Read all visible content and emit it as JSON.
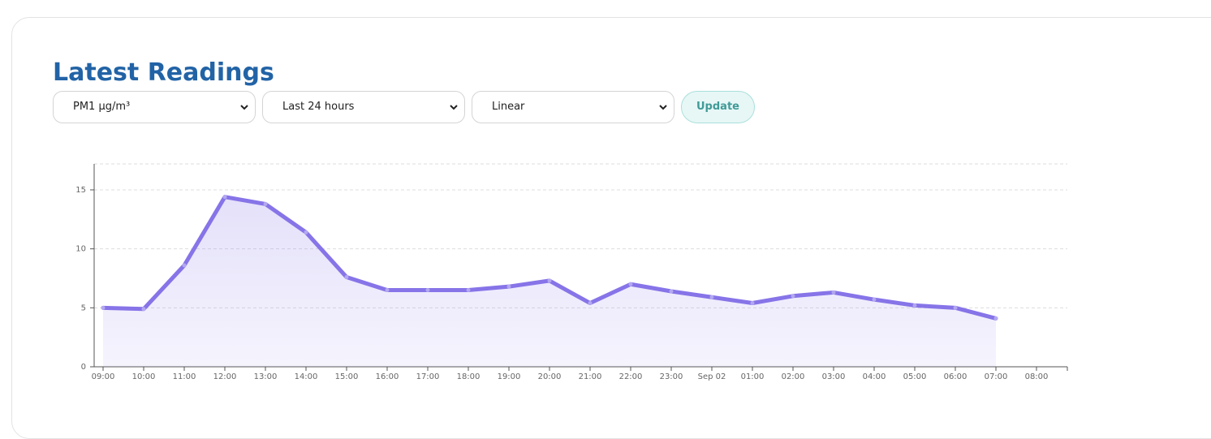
{
  "header": {
    "title": "Latest Readings"
  },
  "controls": {
    "metric": "PM1 µg/m³",
    "range": "Last 24 hours",
    "scale": "Linear",
    "button": "Update"
  },
  "chart_data": {
    "type": "line",
    "categories": [
      "09:00",
      "10:00",
      "11:00",
      "12:00",
      "13:00",
      "14:00",
      "15:00",
      "16:00",
      "17:00",
      "18:00",
      "19:00",
      "20:00",
      "21:00",
      "22:00",
      "23:00",
      "Sep 02",
      "01:00",
      "02:00",
      "03:00",
      "04:00",
      "05:00",
      "06:00",
      "07:00",
      "08:00"
    ],
    "values": [
      5.0,
      4.9,
      8.6,
      14.4,
      13.8,
      11.4,
      7.6,
      6.5,
      6.5,
      6.5,
      6.8,
      7.3,
      5.4,
      7.0,
      6.4,
      5.9,
      5.4,
      6.0,
      6.3,
      5.7,
      5.2,
      5.0,
      4.1,
      null
    ],
    "color": "#8674e8",
    "ylim": [
      0,
      17.2
    ],
    "yticks": [
      0,
      5,
      10,
      15
    ],
    "grid": true
  }
}
